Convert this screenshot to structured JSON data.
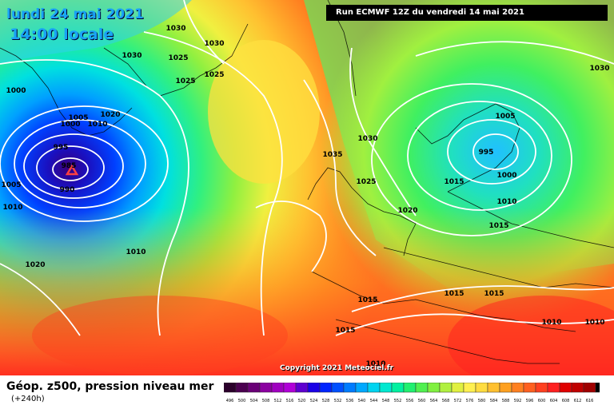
{
  "header": {
    "date_line": "lundi 24 mai 2021",
    "time_line": "14:00 locale",
    "run_info": "Run ECMWF 12Z du vendredi 14 mai 2021"
  },
  "copyright": "Copyright 2021 Meteociel.fr",
  "footer": {
    "title": "Géop. z500, pression niveau mer",
    "subtitle": "(+240h)"
  },
  "low_centers_hpa": [
    985,
    995
  ],
  "isobar_labels": [
    "1030",
    "1030",
    "1025",
    "1030",
    "1025",
    "1025",
    "1000",
    "1020",
    "1005",
    "1000",
    "1010",
    "995",
    "985",
    "990",
    "1005",
    "1010",
    "1020",
    "1010",
    "1035",
    "1030",
    "1025",
    "1020",
    "1005",
    "995",
    "1000",
    "1010",
    "1015",
    "1015",
    "1015",
    "1015",
    "1015",
    "1010",
    "1010",
    "1010",
    "1030",
    "1015"
  ],
  "color_scale": {
    "values": [
      "496",
      "500",
      "504",
      "508",
      "512",
      "516",
      "520",
      "524",
      "528",
      "532",
      "536",
      "540",
      "544",
      "548",
      "552",
      "556",
      "560",
      "564",
      "568",
      "572",
      "576",
      "580",
      "584",
      "588",
      "592",
      "596",
      "600",
      "604",
      "608",
      "612",
      "616"
    ],
    "colors": [
      "#2b002b",
      "#4b0050",
      "#6a0077",
      "#8b00a0",
      "#a000c0",
      "#b000d8",
      "#5e00d0",
      "#1a00e6",
      "#0024ff",
      "#0050ff",
      "#007cff",
      "#00a8ff",
      "#00d4f0",
      "#00e8d0",
      "#00f0a0",
      "#20f070",
      "#50f050",
      "#80f040",
      "#b0f040",
      "#e0f040",
      "#fff050",
      "#ffdc40",
      "#ffc030",
      "#ffa020",
      "#ff8020",
      "#ff6020",
      "#ff4020",
      "#ff2020",
      "#e00000",
      "#c00000",
      "#a00000",
      "#000000"
    ]
  }
}
